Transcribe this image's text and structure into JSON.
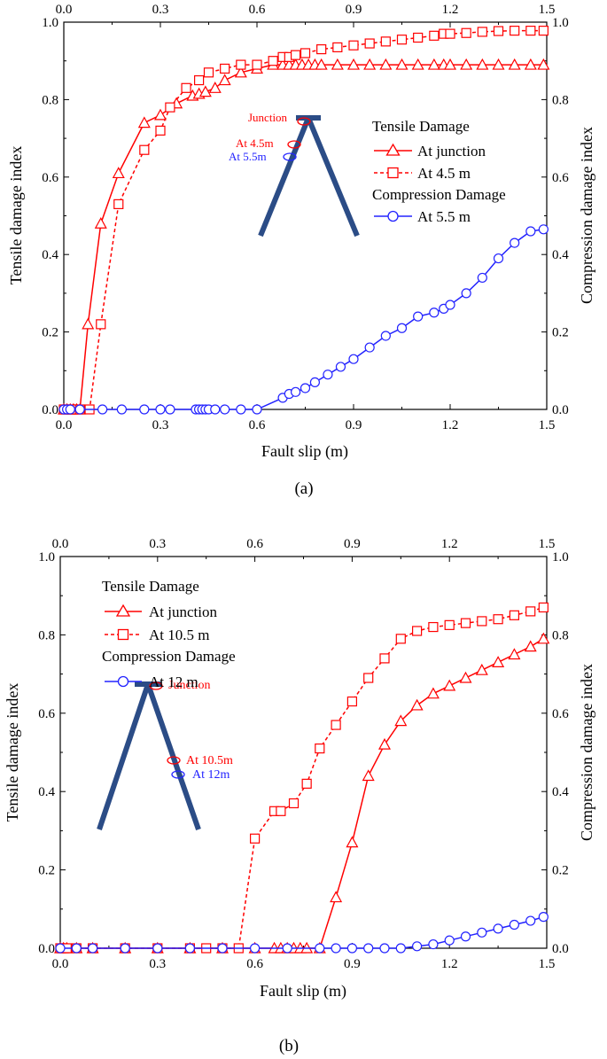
{
  "colors": {
    "red": "#ff0000",
    "blue": "#2323ff",
    "axis": "#000000",
    "beam": "#2b4c86"
  },
  "chart_data": [
    {
      "type": "line",
      "panel_label": "(a)",
      "xlabel": "Fault slip (m)",
      "ylabel": "Tensile damage index",
      "y2label": "Compression damage index",
      "xlim": [
        0,
        1.5
      ],
      "ylim": [
        0,
        1.0
      ],
      "y2lim": [
        0,
        1.0
      ],
      "xticks": [
        "0.0",
        "0.3",
        "0.6",
        "0.9",
        "1.2",
        "1.5"
      ],
      "xticks_top": [
        "0.0",
        "0.3",
        "0.6",
        "0.9",
        "1.2",
        "1.5"
      ],
      "yticks": [
        "0.0",
        "0.2",
        "0.4",
        "0.6",
        "0.8",
        "1.0"
      ],
      "legend": {
        "position": "top-right",
        "group1_title": "Tensile Damage",
        "group2_title": "Compression Damage",
        "items": [
          "At junction",
          "At 4.5 m",
          "At 5.5 m"
        ]
      },
      "inset": {
        "position": "upper-center",
        "shape": "inverted-V",
        "junction_label": "Junction",
        "label_red": "At 4.5m",
        "label_blue": "At 5.5m"
      },
      "series": [
        {
          "name": "At junction",
          "group": "Tensile Damage",
          "color": "#ff0000",
          "marker": "triangle",
          "dash": false,
          "x": [
            0.0,
            0.01,
            0.02,
            0.03,
            0.04,
            0.05,
            0.075,
            0.115,
            0.17,
            0.25,
            0.3,
            0.35,
            0.4,
            0.42,
            0.44,
            0.47,
            0.5,
            0.55,
            0.6,
            0.65,
            0.68,
            0.7,
            0.72,
            0.74,
            0.76,
            0.78,
            0.8,
            0.85,
            0.9,
            0.95,
            1.0,
            1.05,
            1.1,
            1.15,
            1.18,
            1.2,
            1.25,
            1.3,
            1.35,
            1.4,
            1.45,
            1.49
          ],
          "y": [
            0.0,
            0.0,
            0.0,
            0.0,
            0.0,
            0.0,
            0.22,
            0.48,
            0.61,
            0.74,
            0.76,
            0.79,
            0.81,
            0.815,
            0.82,
            0.83,
            0.85,
            0.87,
            0.88,
            0.89,
            0.89,
            0.89,
            0.89,
            0.89,
            0.89,
            0.89,
            0.89,
            0.89,
            0.89,
            0.89,
            0.89,
            0.89,
            0.89,
            0.89,
            0.89,
            0.89,
            0.89,
            0.89,
            0.89,
            0.89,
            0.89,
            0.89
          ]
        },
        {
          "name": "At 4.5 m",
          "group": "Tensile Damage",
          "color": "#ff0000",
          "marker": "square",
          "dash": true,
          "x": [
            0.0,
            0.01,
            0.02,
            0.03,
            0.05,
            0.08,
            0.115,
            0.17,
            0.25,
            0.3,
            0.33,
            0.38,
            0.42,
            0.45,
            0.5,
            0.55,
            0.6,
            0.65,
            0.68,
            0.7,
            0.72,
            0.75,
            0.8,
            0.85,
            0.9,
            0.95,
            1.0,
            1.05,
            1.1,
            1.15,
            1.18,
            1.2,
            1.25,
            1.3,
            1.35,
            1.4,
            1.45,
            1.49
          ],
          "y": [
            0.0,
            0.0,
            0.0,
            0.0,
            0.0,
            0.0,
            0.22,
            0.53,
            0.67,
            0.72,
            0.78,
            0.83,
            0.85,
            0.87,
            0.88,
            0.89,
            0.89,
            0.9,
            0.91,
            0.91,
            0.915,
            0.92,
            0.93,
            0.935,
            0.94,
            0.945,
            0.95,
            0.955,
            0.96,
            0.965,
            0.97,
            0.97,
            0.972,
            0.975,
            0.977,
            0.978,
            0.978,
            0.978
          ]
        },
        {
          "name": "At 5.5 m",
          "group": "Compression Damage",
          "color": "#2323ff",
          "marker": "circle",
          "dash": false,
          "x": [
            0.0,
            0.01,
            0.02,
            0.05,
            0.12,
            0.18,
            0.25,
            0.3,
            0.33,
            0.41,
            0.42,
            0.43,
            0.44,
            0.45,
            0.47,
            0.5,
            0.55,
            0.6,
            0.68,
            0.7,
            0.72,
            0.75,
            0.78,
            0.82,
            0.86,
            0.9,
            0.95,
            1.0,
            1.05,
            1.1,
            1.15,
            1.18,
            1.2,
            1.25,
            1.3,
            1.35,
            1.4,
            1.45,
            1.49
          ],
          "y": [
            0.0,
            0.0,
            0.0,
            0.0,
            0.0,
            0.0,
            0.0,
            0.0,
            0.0,
            0.0,
            0.0,
            0.0,
            0.0,
            0.0,
            0.0,
            0.0,
            0.0,
            0.0,
            0.03,
            0.04,
            0.045,
            0.055,
            0.07,
            0.09,
            0.11,
            0.13,
            0.16,
            0.19,
            0.21,
            0.24,
            0.25,
            0.26,
            0.27,
            0.3,
            0.34,
            0.39,
            0.43,
            0.46,
            0.465
          ]
        }
      ]
    },
    {
      "type": "line",
      "panel_label": "(b)",
      "xlabel": "Fault slip (m)",
      "ylabel": "Tensile damage index",
      "y2label": "Compression damage index",
      "xlim": [
        0,
        1.5
      ],
      "ylim": [
        0,
        1.0
      ],
      "y2lim": [
        0,
        1.0
      ],
      "xticks": [
        "0.0",
        "0.3",
        "0.6",
        "0.9",
        "1.2",
        "1.5"
      ],
      "xticks_top": [
        "0.0",
        "0.3",
        "0.6",
        "0.9",
        "1.2",
        "1.5"
      ],
      "yticks": [
        "0.0",
        "0.2",
        "0.4",
        "0.6",
        "0.8",
        "1.0"
      ],
      "legend": {
        "position": "top-left",
        "group1_title": "Tensile Damage",
        "group2_title": "Compression Damage",
        "items": [
          "At junction",
          "At 10.5 m",
          "At 12 m"
        ]
      },
      "inset": {
        "position": "left",
        "shape": "inverted-V",
        "junction_label": "Junction",
        "label_red": "At 10.5m",
        "label_blue": "At 12m"
      },
      "series": [
        {
          "name": "At junction",
          "group": "Tensile Damage",
          "color": "#ff0000",
          "marker": "triangle",
          "dash": false,
          "x": [
            0.0,
            0.01,
            0.02,
            0.05,
            0.1,
            0.2,
            0.3,
            0.4,
            0.5,
            0.6,
            0.66,
            0.68,
            0.7,
            0.72,
            0.74,
            0.76,
            0.8,
            0.85,
            0.9,
            0.95,
            1.0,
            1.05,
            1.1,
            1.15,
            1.2,
            1.25,
            1.3,
            1.35,
            1.4,
            1.45,
            1.49
          ],
          "y": [
            0.0,
            0.0,
            0.0,
            0.0,
            0.0,
            0.0,
            0.0,
            0.0,
            0.0,
            0.0,
            0.0,
            0.0,
            0.0,
            0.0,
            0.0,
            0.0,
            0.0,
            0.13,
            0.27,
            0.44,
            0.52,
            0.58,
            0.62,
            0.65,
            0.67,
            0.69,
            0.71,
            0.73,
            0.75,
            0.77,
            0.79
          ]
        },
        {
          "name": "At 10.5 m",
          "group": "Tensile Damage",
          "color": "#ff0000",
          "marker": "square",
          "dash": true,
          "x": [
            0.0,
            0.01,
            0.02,
            0.05,
            0.1,
            0.2,
            0.3,
            0.4,
            0.45,
            0.5,
            0.55,
            0.6,
            0.66,
            0.68,
            0.72,
            0.76,
            0.8,
            0.85,
            0.9,
            0.95,
            1.0,
            1.05,
            1.1,
            1.15,
            1.2,
            1.25,
            1.3,
            1.35,
            1.4,
            1.45,
            1.49
          ],
          "y": [
            0.0,
            0.0,
            0.0,
            0.0,
            0.0,
            0.0,
            0.0,
            0.0,
            0.0,
            0.0,
            0.0,
            0.28,
            0.35,
            0.35,
            0.37,
            0.42,
            0.51,
            0.57,
            0.63,
            0.69,
            0.74,
            0.79,
            0.81,
            0.82,
            0.825,
            0.83,
            0.835,
            0.84,
            0.85,
            0.86,
            0.87
          ]
        },
        {
          "name": "At 12 m",
          "group": "Compression Damage",
          "color": "#2323ff",
          "marker": "circle",
          "dash": false,
          "x": [
            0.0,
            0.05,
            0.1,
            0.2,
            0.3,
            0.4,
            0.5,
            0.6,
            0.7,
            0.8,
            0.85,
            0.9,
            0.95,
            1.0,
            1.05,
            1.1,
            1.15,
            1.2,
            1.25,
            1.3,
            1.35,
            1.4,
            1.45,
            1.49
          ],
          "y": [
            0.0,
            0.0,
            0.0,
            0.0,
            0.0,
            0.0,
            0.0,
            0.0,
            0.0,
            0.0,
            0.0,
            0.0,
            0.0,
            0.0,
            0.0,
            0.005,
            0.01,
            0.02,
            0.03,
            0.04,
            0.05,
            0.06,
            0.07,
            0.08
          ]
        }
      ]
    }
  ]
}
